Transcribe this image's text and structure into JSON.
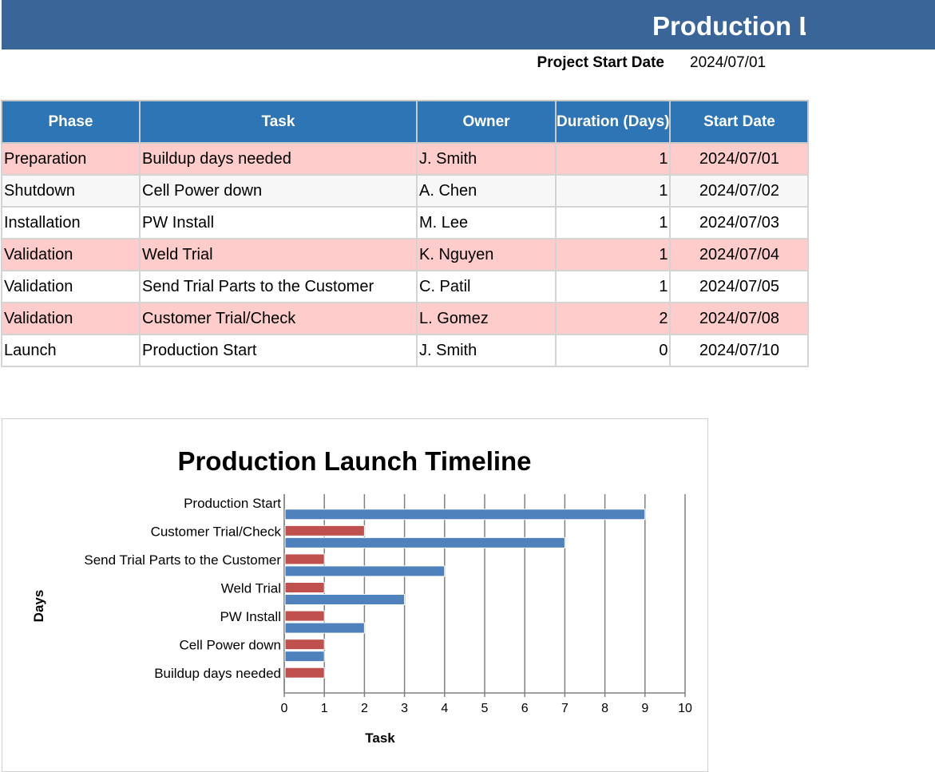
{
  "sheet": {
    "title": "Production L",
    "project_start_label": "Project Start Date",
    "project_start_value": "2024/07/01"
  },
  "table": {
    "headers": {
      "phase": "Phase",
      "task": "Task",
      "owner": "Owner",
      "duration": "Duration (Days)",
      "start": "Start Date"
    },
    "rows": [
      {
        "phase": "Preparation",
        "task": "Buildup days needed",
        "owner": "J. Smith",
        "duration": "1",
        "start": "2024/07/01"
      },
      {
        "phase": "Shutdown",
        "task": "Cell Power down",
        "owner": "A. Chen",
        "duration": "1",
        "start": "2024/07/02"
      },
      {
        "phase": "Installation",
        "task": "PW Install",
        "owner": "M. Lee",
        "duration": "1",
        "start": "2024/07/03"
      },
      {
        "phase": "Validation",
        "task": "Weld Trial",
        "owner": "K. Nguyen",
        "duration": "1",
        "start": "2024/07/04"
      },
      {
        "phase": "Validation",
        "task": "Send Trial Parts to the Customer",
        "owner": "C. Patil",
        "duration": "1",
        "start": "2024/07/05"
      },
      {
        "phase": "Validation",
        "task": "Customer Trial/Check",
        "owner": "L. Gomez",
        "duration": "2",
        "start": "2024/07/08"
      },
      {
        "phase": "Launch",
        "task": "Production Start",
        "owner": "J. Smith",
        "duration": "0",
        "start": "2024/07/10"
      }
    ]
  },
  "chart_data": {
    "type": "bar",
    "orientation": "horizontal",
    "title": "Production Launch Timeline",
    "xlabel": "Task",
    "ylabel": "Days",
    "categories": [
      "Buildup days needed",
      "Cell Power down",
      "PW Install",
      "Weld Trial",
      "Send Trial Parts to the Customer",
      "Customer Trial/Check",
      "Production Start"
    ],
    "series": [
      {
        "color": "#4f81bd",
        "values": [
          0,
          1,
          2,
          3,
          4,
          7,
          9
        ]
      },
      {
        "color": "#c0504d",
        "values": [
          1,
          1,
          1,
          1,
          1,
          2,
          0
        ]
      }
    ],
    "xlim": [
      0,
      10
    ],
    "ticks": [
      "0",
      "1",
      "2",
      "3",
      "4",
      "5",
      "6",
      "7",
      "8",
      "9",
      "10"
    ],
    "grid": "vertical"
  }
}
